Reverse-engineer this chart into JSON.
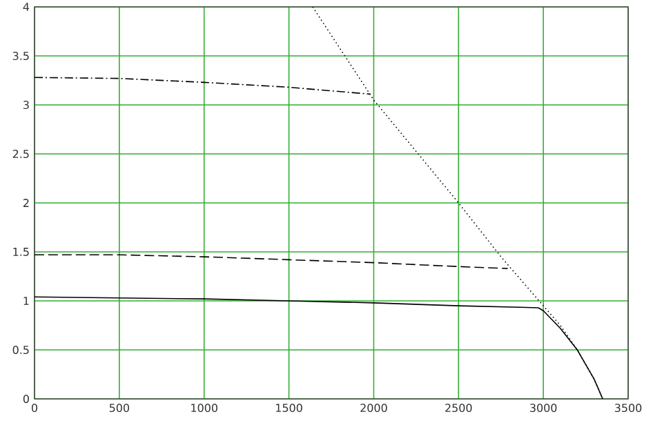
{
  "chart_data": {
    "type": "line",
    "xlim": [
      0,
      3500
    ],
    "ylim": [
      0,
      4
    ],
    "xticks": [
      0,
      500,
      1000,
      1500,
      2000,
      2500,
      3000,
      3500
    ],
    "yticks": [
      0,
      0.5,
      1,
      1.5,
      2,
      2.5,
      3,
      3.5,
      4
    ],
    "grid": true,
    "series": [
      {
        "color": "#000000",
        "line_style": "solid",
        "x": [
          0,
          500,
          1000,
          1500,
          2000,
          2500,
          2970,
          3000,
          3100,
          3200,
          3300,
          3350
        ],
        "values": [
          1.04,
          1.03,
          1.02,
          1.0,
          0.98,
          0.95,
          0.93,
          0.9,
          0.72,
          0.5,
          0.2,
          0
        ]
      },
      {
        "color": "#000000",
        "line_style": "dashed",
        "x": [
          0,
          500,
          1000,
          1500,
          2000,
          2500,
          2790
        ],
        "values": [
          1.47,
          1.47,
          1.45,
          1.42,
          1.39,
          1.35,
          1.33
        ]
      },
      {
        "color": "#000000",
        "line_style": "dashdot",
        "x": [
          0,
          500,
          1000,
          1500,
          1980
        ],
        "values": [
          3.28,
          3.27,
          3.23,
          3.18,
          3.11
        ]
      },
      {
        "color": "#000000",
        "line_style": "dotted",
        "x": [
          1640,
          2000,
          2500,
          2750,
          3000,
          3100,
          3200,
          3300,
          3350
        ],
        "values": [
          4,
          3.05,
          2.0,
          1.45,
          0.95,
          0.75,
          0.5,
          0.2,
          0
        ]
      }
    ]
  }
}
